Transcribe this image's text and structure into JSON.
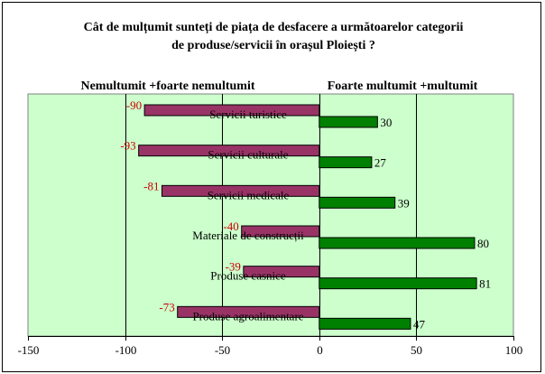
{
  "chart_data": {
    "type": "bar",
    "orientation": "horizontal",
    "title_lines": [
      "Cât de mulțumit sunteți de piața de desfacere a următoarelor categorii",
      "de produse/servicii în orașul Ploiești ?"
    ],
    "left_header": "Nemultumit +foarte nemultumit",
    "right_header": "Foarte multumit +multumit",
    "categories": [
      "Servicii turistice",
      "Servicii culturale",
      "Servicii medicale",
      "Materiale de construcții",
      "Produse casnice",
      "Produse agroalimentare"
    ],
    "series": [
      {
        "values": [
          -90,
          -93,
          -81,
          -40,
          -39,
          -73
        ]
      },
      {
        "values": [
          30,
          27,
          39,
          80,
          81,
          47
        ]
      }
    ],
    "xlim": [
      -150,
      100
    ],
    "xticks": [
      -150,
      -100,
      -50,
      0,
      50,
      100
    ],
    "grid": true,
    "colors": {
      "negative_bar": "#993366",
      "positive_bar": "#008000",
      "plot_background": "#ccffcc",
      "negative_label": "#cc0000"
    }
  }
}
